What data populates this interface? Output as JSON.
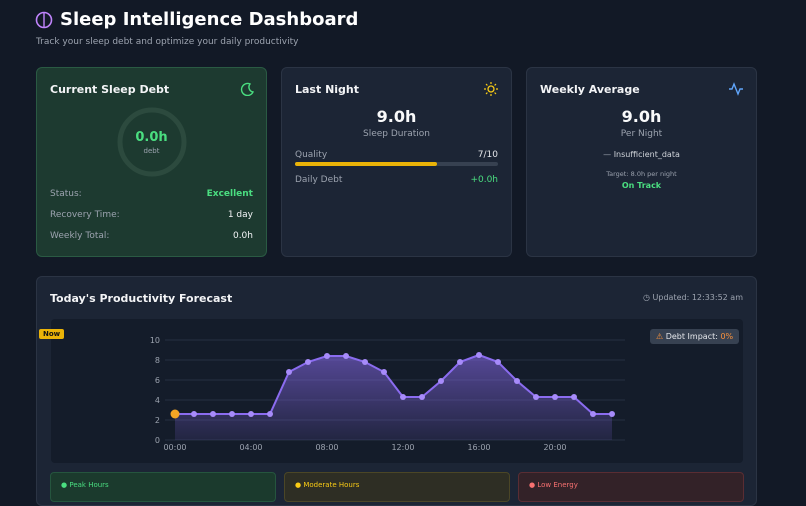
{
  "header": {
    "title": "Sleep Intelligence Dashboard",
    "subtitle": "Track your sleep debt and optimize your daily productivity"
  },
  "debt_card": {
    "title": "Current Sleep Debt",
    "value": "0.0h",
    "unit": "debt",
    "rows": [
      [
        "Status:",
        "Excellent"
      ],
      [
        "Recovery Time:",
        "1 day"
      ],
      [
        "Weekly Total:",
        "0.0h"
      ]
    ]
  },
  "last_night": {
    "title": "Last Night",
    "value": "9.0h",
    "caption": "Sleep Duration",
    "quality_label": "Quality",
    "quality": {
      "value": 7,
      "max": 10,
      "label": "7/10"
    },
    "debt_label": "Daily Debt",
    "debt": "+0.0h"
  },
  "weekly": {
    "title": "Weekly Average",
    "value": "9.0h",
    "caption": "Per Night",
    "trend": "Insufficient_data",
    "target": "Target: 8.0h per night",
    "status": "On Track"
  },
  "forecast": {
    "title": "Today's Productivity Forecast",
    "updated": "Updated: 12:33:52 am",
    "now_badge": "Now",
    "impact_label": "Debt Impact:",
    "impact": "0%",
    "legend": [
      "Peak Hours",
      "Moderate Hours",
      "Low Energy"
    ]
  },
  "chart_data": {
    "type": "area",
    "color": "#8b6cf0",
    "now_color": "#f5a524",
    "grid": true,
    "categories": [
      "00:00",
      null,
      null,
      null,
      "04:00",
      null,
      null,
      null,
      "08:00",
      null,
      null,
      null,
      "12:00",
      null,
      null,
      null,
      "16:00",
      null,
      null,
      null,
      "20:00",
      null,
      null,
      null
    ],
    "values": [
      2.6,
      2.6,
      2.6,
      2.6,
      2.6,
      2.6,
      6.8,
      7.8,
      8.4,
      8.4,
      7.8,
      6.8,
      4.3,
      4.3,
      5.9,
      7.8,
      8.5,
      7.8,
      5.9,
      4.3,
      4.3,
      4.3,
      2.6,
      2.6
    ],
    "ylim": [
      0,
      10
    ],
    "yticks": [
      0,
      2,
      4,
      6,
      8,
      10
    ]
  }
}
